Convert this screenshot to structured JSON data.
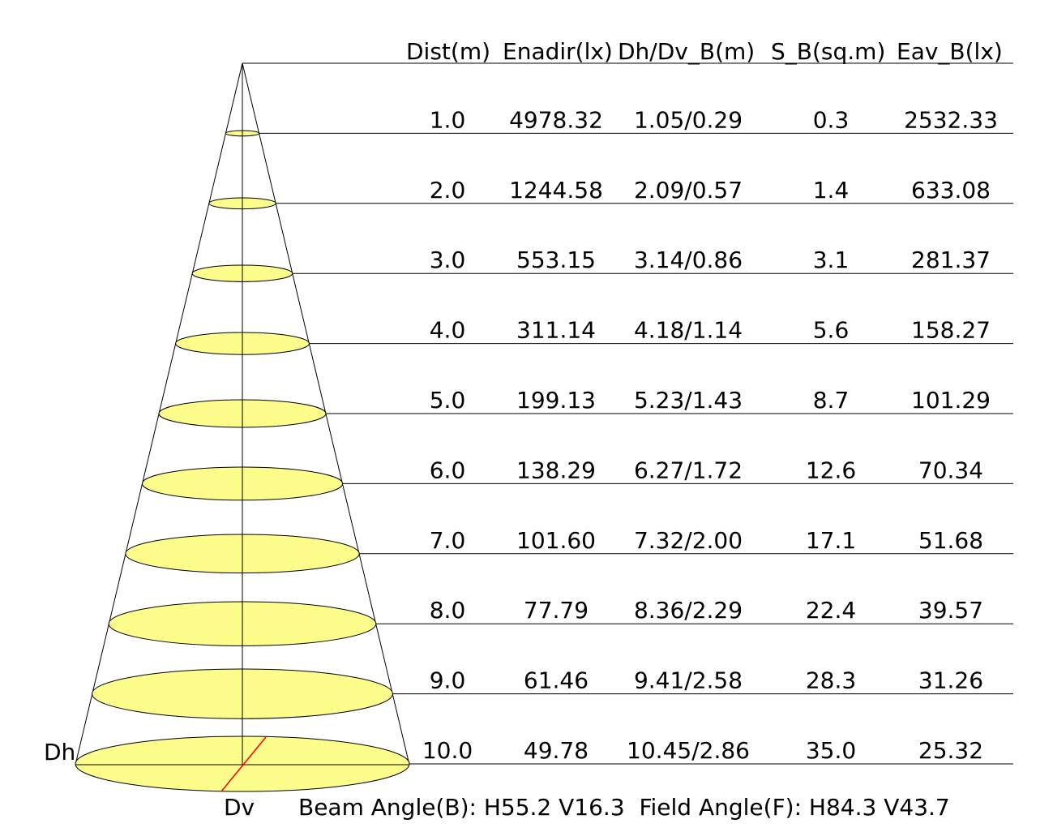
{
  "header": [
    "Dist(m)",
    "Enadir(lx)",
    "Dh/Dv_B(m)",
    "S_B(sq.m)",
    "Eav_B(lx)"
  ],
  "rows": [
    {
      "dist": "1.0",
      "enadir": "4978.32",
      "dhdv": "1.05/0.29",
      "s": "0.3",
      "eav": "2532.33"
    },
    {
      "dist": "2.0",
      "enadir": "1244.58",
      "dhdv": "2.09/0.57",
      "s": "1.4",
      "eav": "633.08"
    },
    {
      "dist": "3.0",
      "enadir": "553.15",
      "dhdv": "3.14/0.86",
      "s": "3.1",
      "eav": "281.37"
    },
    {
      "dist": "4.0",
      "enadir": "311.14",
      "dhdv": "4.18/1.14",
      "s": "5.6",
      "eav": "158.27"
    },
    {
      "dist": "5.0",
      "enadir": "199.13",
      "dhdv": "5.23/1.43",
      "s": "8.7",
      "eav": "101.29"
    },
    {
      "dist": "6.0",
      "enadir": "138.29",
      "dhdv": "6.27/1.72",
      "s": "12.6",
      "eav": "70.34"
    },
    {
      "dist": "7.0",
      "enadir": "101.60",
      "dhdv": "7.32/2.00",
      "s": "17.1",
      "eav": "51.68"
    },
    {
      "dist": "8.0",
      "enadir": "77.79",
      "dhdv": "8.36/2.29",
      "s": "22.4",
      "eav": "39.57"
    },
    {
      "dist": "9.0",
      "enadir": "61.46",
      "dhdv": "9.41/2.58",
      "s": "28.3",
      "eav": "31.26"
    },
    {
      "dist": "10.0",
      "enadir": "49.78",
      "dhdv": "10.45/2.86",
      "s": "35.0",
      "eav": "25.32"
    }
  ],
  "labels": {
    "dh": "Dh",
    "dv": "Dv",
    "footer": "Beam Angle(B): H55.2 V16.3  Field Angle(F): H84.3 V43.7"
  },
  "colors": {
    "spot_fill": "#fdfd8c",
    "dimension_line": "#ff0000",
    "lines": "#000000"
  }
}
